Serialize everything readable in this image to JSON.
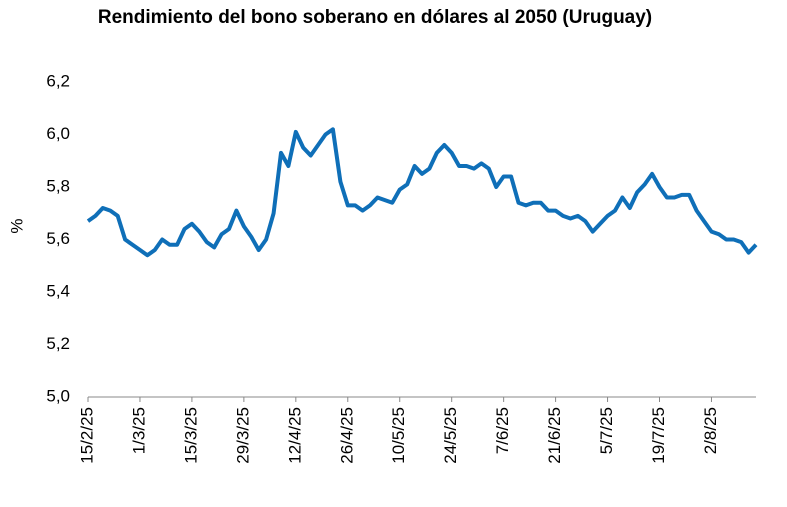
{
  "chart_data": {
    "type": "line",
    "title": "Rendimiento del bono soberano en dólares al 2050 (Uruguay)",
    "y_label": "%",
    "categories": [
      "15/2/25",
      null,
      null,
      null,
      null,
      null,
      null,
      "1/3/25",
      null,
      null,
      null,
      null,
      null,
      null,
      "15/3/25",
      null,
      null,
      null,
      null,
      null,
      null,
      "29/3/25",
      null,
      null,
      null,
      null,
      null,
      null,
      "12/4/25",
      null,
      null,
      null,
      null,
      null,
      null,
      "26/4/25",
      null,
      null,
      null,
      null,
      null,
      null,
      "10/5/25",
      null,
      null,
      null,
      null,
      null,
      null,
      "24/5/25",
      null,
      null,
      null,
      null,
      null,
      null,
      "7/6/25",
      null,
      null,
      null,
      null,
      null,
      null,
      "21/6/25",
      null,
      null,
      null,
      null,
      null,
      null,
      "5/7/25",
      null,
      null,
      null,
      null,
      null,
      null,
      "19/7/25",
      null,
      null,
      null,
      null,
      null,
      null,
      "2/8/25",
      null,
      null,
      null,
      null,
      null,
      null
    ],
    "series": [
      {
        "color": "#0f6fb8",
        "values": [
          5.67,
          5.69,
          5.72,
          5.71,
          5.69,
          5.6,
          5.58,
          5.56,
          5.54,
          5.56,
          5.6,
          5.58,
          5.58,
          5.64,
          5.66,
          5.63,
          5.59,
          5.57,
          5.62,
          5.64,
          5.71,
          5.65,
          5.61,
          5.56,
          5.6,
          5.7,
          5.93,
          5.88,
          6.01,
          5.95,
          5.92,
          5.96,
          6.0,
          6.02,
          5.82,
          5.73,
          5.73,
          5.71,
          5.73,
          5.76,
          5.75,
          5.74,
          5.79,
          5.81,
          5.88,
          5.85,
          5.87,
          5.93,
          5.96,
          5.93,
          5.88,
          5.88,
          5.87,
          5.89,
          5.87,
          5.8,
          5.84,
          5.84,
          5.74,
          5.73,
          5.74,
          5.74,
          5.71,
          5.71,
          5.69,
          5.68,
          5.69,
          5.67,
          5.63,
          5.66,
          5.69,
          5.71,
          5.76,
          5.72,
          5.78,
          5.81,
          5.85,
          5.8,
          5.76,
          5.76,
          5.77,
          5.77,
          5.71,
          5.67,
          5.63,
          5.62,
          5.6,
          5.6,
          5.59,
          5.55,
          5.58
        ]
      }
    ],
    "ylim": [
      5.0,
      6.2
    ],
    "yticks": [
      {
        "value": 5.0,
        "label": "5,0"
      },
      {
        "value": 5.2,
        "label": "5,2"
      },
      {
        "value": 5.4,
        "label": "5,4"
      },
      {
        "value": 5.6,
        "label": "5,6"
      },
      {
        "value": 5.8,
        "label": "5,8"
      },
      {
        "value": 6.0,
        "label": "6,0"
      },
      {
        "value": 6.2,
        "label": "6,2"
      }
    ],
    "grid": false
  }
}
